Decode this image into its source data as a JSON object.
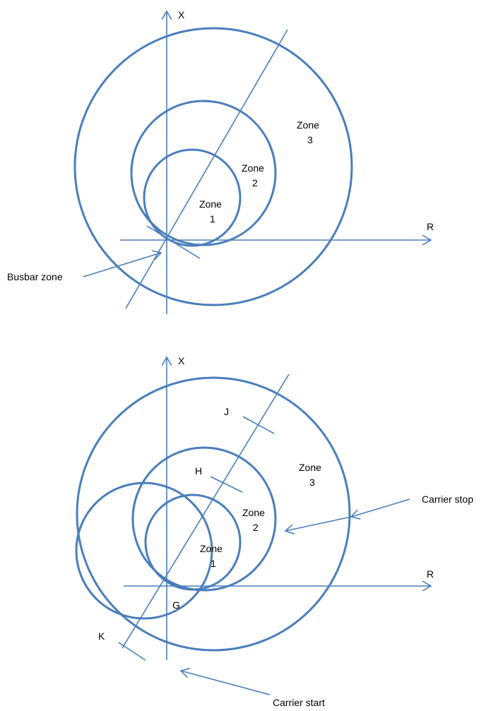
{
  "diagrams": [
    {
      "x_axis": "X",
      "r_axis": "R",
      "zones": [
        {
          "word": "Zone",
          "number": "1"
        },
        {
          "word": "Zone",
          "number": "2"
        },
        {
          "word": "Zone",
          "number": "3"
        }
      ],
      "annotations": [
        "Busbar zone"
      ]
    },
    {
      "x_axis": "X",
      "r_axis": "R",
      "zones": [
        {
          "word": "Zone",
          "number": "1"
        },
        {
          "word": "Zone",
          "number": "2"
        },
        {
          "word": "Zone",
          "number": "3"
        }
      ],
      "points": [
        "J",
        "H",
        "G",
        "K"
      ],
      "annotations": [
        "Carrier stop",
        "Carrier start"
      ]
    }
  ]
}
